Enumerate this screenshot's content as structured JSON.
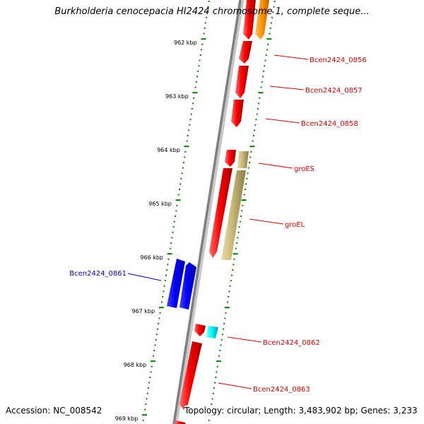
{
  "title": "Burkholderia cenocepacia HI2424 chromosome 1, complete seque...",
  "accession": "Accession: NC_008542",
  "topology": "Topology: circular; Length: 3,483,902 bp; Genes: 3,233",
  "scale_labels": [
    "962 kbp",
    "963 kbp",
    "964 kbp",
    "965 kbp",
    "966 kbp",
    "967 kbp",
    "968 kbp",
    "969 kbp"
  ],
  "colors": {
    "forward_gene": "#e00000",
    "reverse_gene": "#0000e0",
    "chaperone": "#c8b878",
    "orange_gene": "#ff9900",
    "cyan_gene": "#00e0e0",
    "tick": "#008000"
  },
  "gene_labels": [
    {
      "name": "Bcen2424_0856",
      "color": "#e00000"
    },
    {
      "name": "Bcen2424_0857",
      "color": "#e00000"
    },
    {
      "name": "Bcen2424_0858",
      "color": "#e00000"
    },
    {
      "name": "groES",
      "color": "#e00000"
    },
    {
      "name": "groEL",
      "color": "#e00000"
    },
    {
      "name": "Bcen2424_0861",
      "color": "#0000c0"
    },
    {
      "name": "Bcen2424_0862",
      "color": "#e00000"
    },
    {
      "name": "Bcen2424_0863",
      "color": "#e00000"
    }
  ]
}
